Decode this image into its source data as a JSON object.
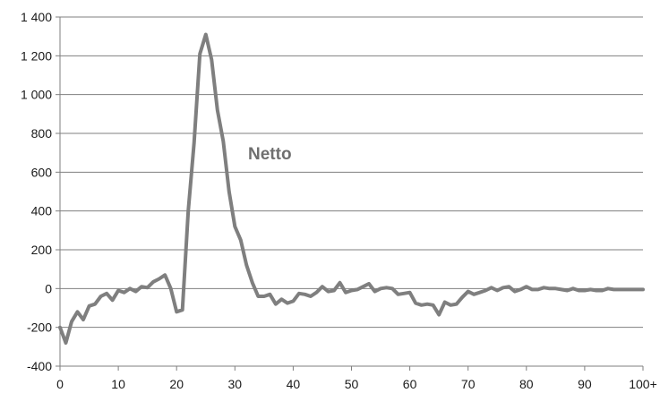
{
  "chart_data": {
    "type": "line",
    "title": "",
    "xlabel": "",
    "ylabel": "",
    "xlim": [
      0,
      100
    ],
    "ylim": [
      -400,
      1400
    ],
    "y_ticks": [
      -400,
      -200,
      0,
      200,
      400,
      600,
      800,
      1000,
      1200,
      1400
    ],
    "y_tick_labels": [
      "-400",
      "-200",
      "0",
      "200",
      "400",
      "600",
      "800",
      "1 000",
      "1 200",
      "1 400"
    ],
    "x_ticks": [
      0,
      10,
      20,
      30,
      40,
      50,
      60,
      70,
      80,
      90,
      100
    ],
    "x_tick_labels": [
      "0",
      "10",
      "20",
      "30",
      "40",
      "50",
      "60",
      "70",
      "80",
      "90",
      "100+"
    ],
    "grid": "horizontal",
    "colors": {
      "line": "#7f7f7f",
      "grid": "#7f7f7f",
      "axis": "#7f7f7f",
      "label": "#6f6f6f"
    },
    "series": [
      {
        "name": "Netto",
        "x": [
          0,
          1,
          2,
          3,
          4,
          5,
          6,
          7,
          8,
          9,
          10,
          11,
          12,
          13,
          14,
          15,
          16,
          17,
          18,
          19,
          20,
          21,
          22,
          23,
          24,
          25,
          26,
          27,
          28,
          29,
          30,
          31,
          32,
          33,
          34,
          35,
          36,
          37,
          38,
          39,
          40,
          41,
          42,
          43,
          44,
          45,
          46,
          47,
          48,
          49,
          50,
          51,
          52,
          53,
          54,
          55,
          56,
          57,
          58,
          59,
          60,
          61,
          62,
          63,
          64,
          65,
          66,
          67,
          68,
          69,
          70,
          71,
          72,
          73,
          74,
          75,
          76,
          77,
          78,
          79,
          80,
          81,
          82,
          83,
          84,
          85,
          86,
          87,
          88,
          89,
          90,
          91,
          92,
          93,
          94,
          95,
          96,
          97,
          98,
          99,
          100
        ],
        "values": [
          -200,
          -280,
          -170,
          -120,
          -160,
          -90,
          -80,
          -40,
          -25,
          -60,
          -10,
          -20,
          0,
          -15,
          10,
          5,
          35,
          50,
          70,
          0,
          -120,
          -110,
          400,
          750,
          1210,
          1310,
          1180,
          920,
          760,
          500,
          320,
          250,
          120,
          30,
          -40,
          -40,
          -30,
          -80,
          -55,
          -75,
          -65,
          -25,
          -30,
          -40,
          -20,
          10,
          -15,
          -10,
          30,
          -20,
          -10,
          -5,
          10,
          25,
          -15,
          0,
          5,
          0,
          -30,
          -25,
          -20,
          -75,
          -85,
          -80,
          -85,
          -135,
          -70,
          -85,
          -80,
          -45,
          -15,
          -30,
          -20,
          -10,
          5,
          -10,
          5,
          10,
          -15,
          -5,
          10,
          -5,
          -5,
          5,
          0,
          0,
          -5,
          -10,
          0,
          -10,
          -10,
          -5,
          -10,
          -10,
          0,
          -5,
          -5,
          -5,
          -5,
          -5,
          -5
        ]
      }
    ]
  }
}
